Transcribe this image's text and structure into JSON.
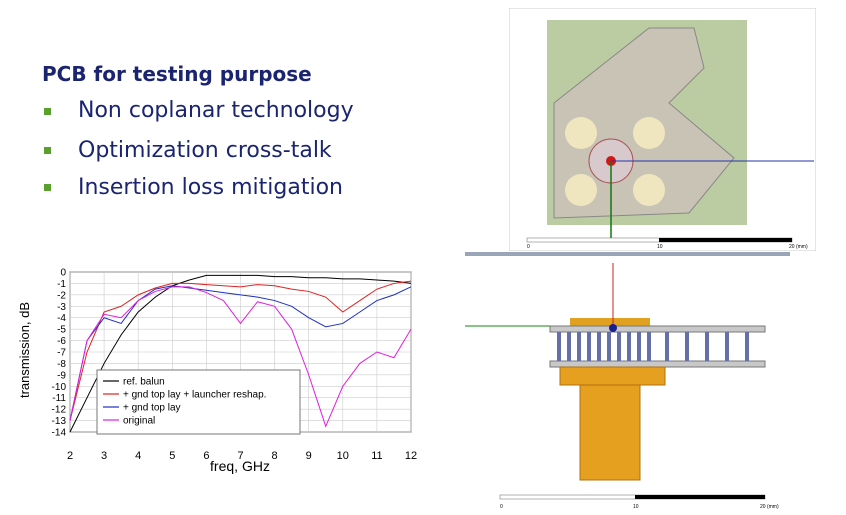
{
  "slide": {
    "title": "PCB for testing purpose",
    "bullets": [
      "Non coplanar technology",
      "Optimization cross-talk",
      "Insertion loss mitigation"
    ]
  },
  "pcb_top": {
    "scale": [
      "0",
      "10",
      "20 (mm)"
    ]
  },
  "pcb_side": {
    "scale": [
      "0",
      "10",
      "20 (mm)"
    ]
  },
  "chart_data": {
    "type": "line",
    "xlabel": "freq, GHz",
    "ylabel": "transmission, dB",
    "x": [
      2,
      2.5,
      3,
      3.5,
      4,
      4.5,
      5,
      5.5,
      6,
      6.5,
      7,
      7.5,
      8,
      8.5,
      9,
      9.5,
      10,
      10.5,
      11,
      11.5,
      12
    ],
    "series": [
      {
        "name": "ref. balun",
        "color": "#000000",
        "values": [
          -14,
          -11,
          -8,
          -5.5,
          -3.5,
          -2.2,
          -1.2,
          -0.7,
          -0.3,
          -0.3,
          -0.3,
          -0.3,
          -0.4,
          -0.4,
          -0.5,
          -0.5,
          -0.6,
          -0.6,
          -0.7,
          -0.8,
          -1
        ]
      },
      {
        "name": "+ gnd top lay + launcher reshap.",
        "color": "#e02020",
        "values": [
          -13,
          -7,
          -3.5,
          -3,
          -2,
          -1.4,
          -1,
          -1,
          -1.1,
          -1.2,
          -1.3,
          -1.1,
          -1.2,
          -1.5,
          -1.7,
          -2.2,
          -3.5,
          -2.5,
          -1.5,
          -1,
          -0.8
        ]
      },
      {
        "name": "+ gnd top lay",
        "color": "#2030c0",
        "values": [
          -13,
          -6,
          -4,
          -4.5,
          -2.5,
          -1.5,
          -1.2,
          -1.4,
          -1.6,
          -1.8,
          -2,
          -2.2,
          -2.5,
          -3,
          -4,
          -4.8,
          -4.5,
          -3.5,
          -2.5,
          -2,
          -1.3
        ]
      },
      {
        "name": "original",
        "color": "#e020e0",
        "values": [
          -13,
          -6,
          -3.7,
          -4,
          -2.5,
          -1.7,
          -1.3,
          -1.3,
          -1.8,
          -2.5,
          -4.5,
          -2.6,
          -3,
          -5,
          -9,
          -13.5,
          -10,
          -8,
          -7,
          -7.5,
          -5
        ]
      }
    ],
    "xlim": [
      2,
      12
    ],
    "xticks": [
      2,
      3,
      4,
      5,
      6,
      7,
      8,
      9,
      10,
      11,
      12
    ],
    "ylim": [
      -14,
      0
    ],
    "yticks": [
      0,
      -1,
      -2,
      -3,
      -4,
      -5,
      -6,
      -7,
      -8,
      -9,
      -10,
      -11,
      -12,
      -13,
      -14
    ],
    "grid": true,
    "legend": "lower left"
  }
}
